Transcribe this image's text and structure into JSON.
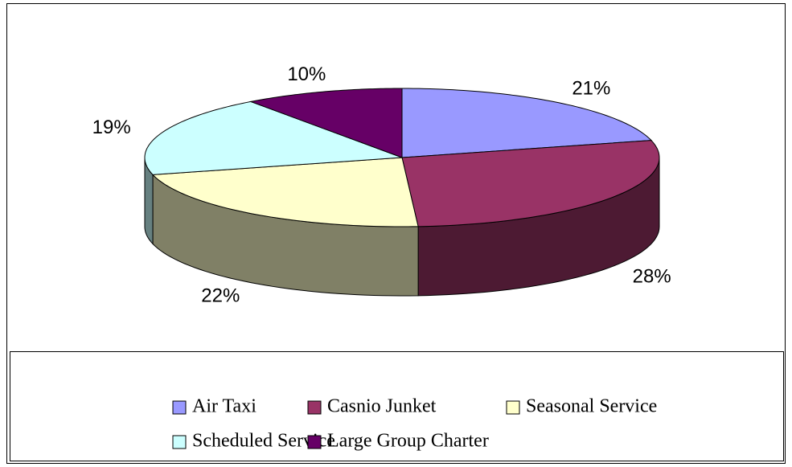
{
  "chart_data": {
    "type": "pie3d",
    "categories": [
      "Air Taxi",
      "Casnio Junket",
      "Seasonal Service",
      "Scheduled Service",
      "Large Group Charter"
    ],
    "values": [
      21,
      28,
      22,
      19,
      10
    ],
    "value_labels": [
      "21%",
      "28%",
      "22%",
      "19%",
      "10%"
    ],
    "colors": [
      "#9999ff",
      "#993366",
      "#ffffcc",
      "#ccffff",
      "#660066"
    ],
    "legend": "bottom"
  }
}
